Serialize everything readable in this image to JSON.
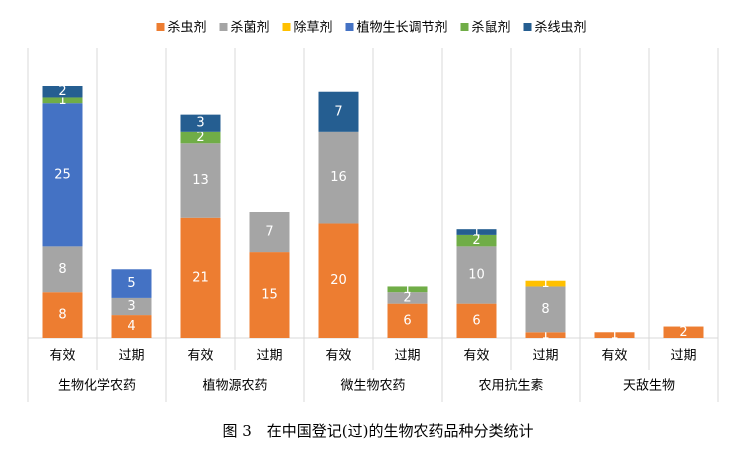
{
  "chart_data": {
    "type": "stacked_bar",
    "caption": "图 3　在中国登记(过)的生物农药品种分类统计",
    "groups": [
      "生物化学农药",
      "植物源农药",
      "微生物农药",
      "农用抗生素",
      "天敌生物"
    ],
    "categories": [
      "有效",
      "过期",
      "有效",
      "过期",
      "有效",
      "过期",
      "有效",
      "过期",
      "有效",
      "过期"
    ],
    "legend": "top",
    "series": [
      {
        "name": "杀虫剂",
        "color": "#ed7d31",
        "values": [
          8,
          4,
          21,
          15,
          20,
          6,
          6,
          1,
          1,
          2
        ]
      },
      {
        "name": "杀菌剂",
        "color": "#a5a5a5",
        "values": [
          8,
          3,
          13,
          7,
          16,
          2,
          10,
          8,
          null,
          null
        ]
      },
      {
        "name": "除草剂",
        "color": "#ffc000",
        "values": [
          null,
          null,
          null,
          null,
          null,
          null,
          null,
          1,
          null,
          null
        ]
      },
      {
        "name": "植物生长调节剂",
        "color": "#4472c4",
        "values": [
          25,
          5,
          null,
          null,
          null,
          null,
          null,
          null,
          null,
          null
        ]
      },
      {
        "name": "杀鼠剂",
        "color": "#70ad47",
        "values": [
          1,
          null,
          2,
          null,
          null,
          1,
          2,
          null,
          null,
          null
        ]
      },
      {
        "name": "杀线虫剂",
        "color": "#255e91",
        "values": [
          2,
          null,
          3,
          null,
          7,
          null,
          1,
          null,
          null,
          null
        ]
      }
    ]
  }
}
